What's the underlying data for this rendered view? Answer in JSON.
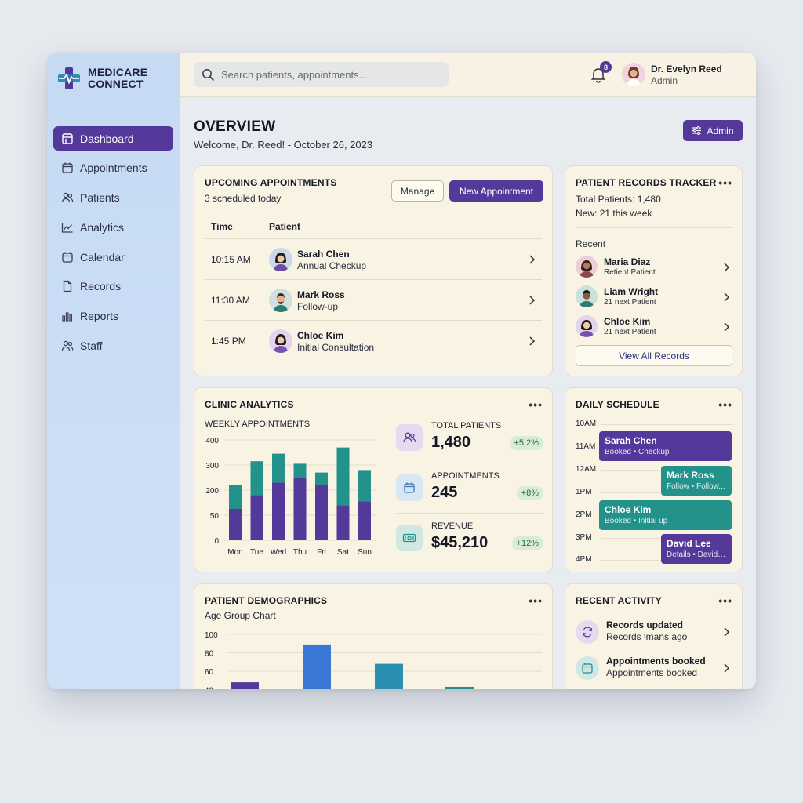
{
  "brand": {
    "line1": "MEDICARE",
    "line2": "CONNECT"
  },
  "sidebar": {
    "items": [
      {
        "label": "Dashboard",
        "icon": "dashboard-icon",
        "active": true
      },
      {
        "label": "Appointments",
        "icon": "calendar-icon"
      },
      {
        "label": "Patients",
        "icon": "users-icon"
      },
      {
        "label": "Analytics",
        "icon": "trend-icon"
      },
      {
        "label": "Calendar",
        "icon": "calendar-icon"
      },
      {
        "label": "Records",
        "icon": "file-icon"
      },
      {
        "label": "Reports",
        "icon": "bar-chart-icon"
      },
      {
        "label": "Staff",
        "icon": "users-icon"
      }
    ]
  },
  "header": {
    "search_placeholder": "Search patients, appointments...",
    "notification_count": "8",
    "user_name": "Dr. Evelyn Reed",
    "user_role": "Admin"
  },
  "overview": {
    "title": "OVERVIEW",
    "subtitle": "Welcome, Dr. Reed! - October 26, 2023",
    "admin_label": "Admin"
  },
  "upcoming": {
    "title": "UPCOMING APPOINTMENTS",
    "subtitle": "3 scheduled today",
    "manage_label": "Manage",
    "new_label": "New Appointment",
    "col_time": "Time",
    "col_patient": "Patient",
    "rows": [
      {
        "time": "10:15 AM",
        "name": "Sarah Chen",
        "type": "Annual Checkup"
      },
      {
        "time": "11:30 AM",
        "name": "Mark Ross",
        "type": "Follow-up"
      },
      {
        "time": "1:45 PM",
        "name": "Chloe Kim",
        "type": "Initial Consultation"
      }
    ]
  },
  "records": {
    "title": "PATIENT RECORDS TRACKER",
    "total": "Total Patients: 1,480",
    "new": "New: 21 this week",
    "recent_label": "Recent",
    "items": [
      {
        "name": "Maria Diaz",
        "type": "Retient Patient"
      },
      {
        "name": "Liam Wright",
        "type": "21 next Patient"
      },
      {
        "name": "Chloe Kim",
        "type": "21 next Patient"
      }
    ],
    "view_all": "View All Records"
  },
  "analytics": {
    "title": "CLINIC ANALYTICS",
    "chart_label": "WEEKLY APPOINTMENTS",
    "stats": [
      {
        "label": "TOTAL PATIENTS",
        "value": "1,480",
        "change": "+5.2%",
        "icon": "users-icon"
      },
      {
        "label": "APPOINTMENTS",
        "value": "245",
        "change": "+8%",
        "icon": "calendar-icon"
      },
      {
        "label": "REVENUE",
        "value": "$45,210",
        "change": "+12%",
        "icon": "cash-icon"
      }
    ]
  },
  "schedule": {
    "title": "DAILY SCHEDULE",
    "hours": [
      "10AM",
      "11AM",
      "12AM",
      "1PM",
      "2PM",
      "3PM",
      "4PM"
    ],
    "events": [
      {
        "name": "Sarah Chen",
        "sub": "Booked • Checkup",
        "color": "#55399a"
      },
      {
        "name": "Mark Ross",
        "sub": "Follow • Follow...",
        "color": "#22928a"
      },
      {
        "name": "Chloe Kim",
        "sub": "Booked • Initial up",
        "color": "#22928a"
      },
      {
        "name": "David Lee",
        "sub": "Details • David ...",
        "color": "#55399a"
      }
    ]
  },
  "demographics": {
    "title": "PATIENT DEMOGRAPHICS",
    "subtitle": "Age Group Chart"
  },
  "activity": {
    "title": "RECENT ACTIVITY",
    "items": [
      {
        "title": "Records updated",
        "sub": "Records ᵗmans ago",
        "icon": "refresh-icon"
      },
      {
        "title": "Appointments booked",
        "sub": "Appointments booked",
        "icon": "calendar-icon"
      }
    ]
  },
  "colors": {
    "primary": "#55399a",
    "teal": "#22928a",
    "blue": "#3a78d8",
    "badge_green": "#d9ecd9"
  },
  "chart_data": [
    {
      "type": "bar",
      "title": "WEEKLY APPOINTMENTS",
      "stacked": true,
      "categories": [
        "Mon",
        "Tue",
        "Wed",
        "Thu",
        "Fri",
        "Sat",
        "Sun"
      ],
      "y_ticks": [
        "400",
        "300",
        "200",
        "50",
        "0"
      ],
      "series": [
        {
          "values": [
            125,
            180,
            230,
            250,
            220,
            140,
            155
          ],
          "color": "#55399a"
        },
        {
          "values": [
            95,
            135,
            115,
            55,
            50,
            230,
            125
          ],
          "color": "#22928a"
        }
      ],
      "ylim": [
        0,
        400
      ]
    },
    {
      "type": "bar",
      "title": "Age Group Chart",
      "y_ticks": [
        "100",
        "80",
        "60",
        "40"
      ],
      "values": [
        48,
        89,
        68,
        43
      ],
      "colors": [
        "#55399a",
        "#3a78d8",
        "#2a8fb3",
        "#22928a"
      ],
      "ylim": [
        40,
        100
      ]
    }
  ]
}
